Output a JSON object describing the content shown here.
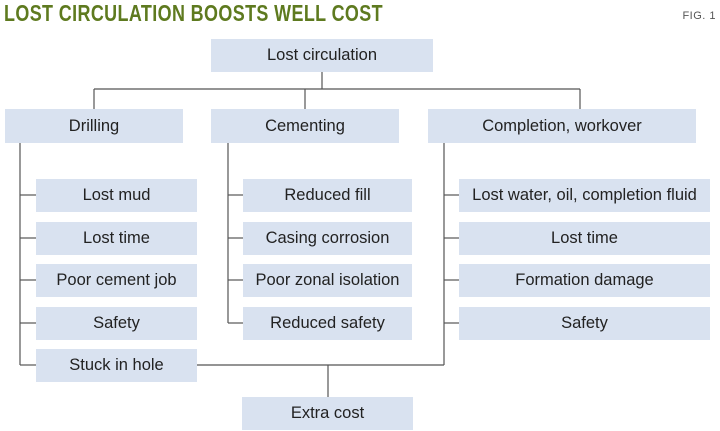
{
  "title": "LOST CIRCULATION BOOSTS WELL COST",
  "fig_label": "FIG. 1",
  "colors": {
    "title": "#5e7a1f",
    "box_fill": "#d9e2f0",
    "line": "#555555"
  },
  "root": "Lost circulation",
  "categories": [
    {
      "label": "Drilling",
      "items": [
        "Lost mud",
        "Lost time",
        "Poor cement job",
        "Safety",
        "Stuck in hole"
      ]
    },
    {
      "label": "Cementing",
      "items": [
        "Reduced fill",
        "Casing corrosion",
        "Poor zonal isolation",
        "Reduced safety"
      ]
    },
    {
      "label": "Completion, workover",
      "items": [
        "Lost water, oil, completion fluid",
        "Lost time",
        "Formation damage",
        "Safety"
      ]
    }
  ],
  "result": "Extra cost"
}
